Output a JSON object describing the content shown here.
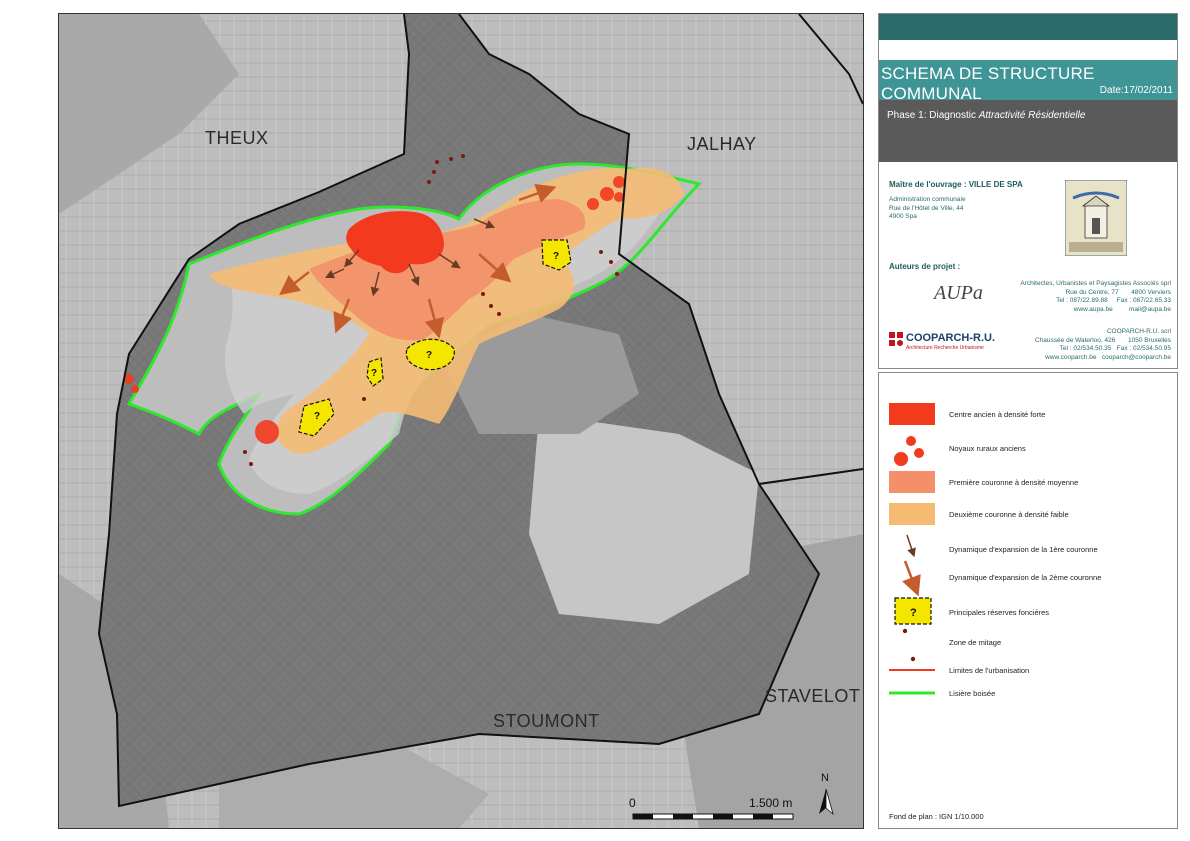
{
  "map": {
    "municipalities": {
      "theux": "THEUX",
      "jalhay": "JALHAY",
      "stoumont": "STOUMONT",
      "stavelot": "STAVELOT"
    },
    "scale": {
      "start": "0",
      "end": "1.500 m"
    },
    "north": "N",
    "colors": {
      "land_light": "#c8c8c8",
      "land_dark": "#7c7c7c",
      "forest_line": "#2ee82e",
      "core": "#f23a1e",
      "ring1": "#f3906a",
      "ring2": "#f5bb74",
      "reserve": "#f5e600"
    }
  },
  "title_block": {
    "title": "SCHEMA DE STRUCTURE COMMUNAL",
    "date": "Date:17/02/2011",
    "phase_prefix": "Phase 1: Diagnostic ",
    "phase_italic": "Attractivité Résidentielle",
    "owner_heading": "Maître de l'ouvrage : VILLE DE SPA",
    "owner_lines": [
      "Administration communale",
      "Rue de l'Hôtel de Ville, 44",
      "4900 Spa"
    ],
    "authors_heading": "Auteurs de projet :",
    "aupa_logo": "AUPa",
    "aupa_info": [
      "Architectes, Urbanistes et Paysagistes Associés sprl",
      "Rue du Centre, 77",
      "4800 Verviers",
      "Tel : 087/22.89.88",
      "Fax : 087/22.65.33",
      "www.aupa.be",
      "mail@aupa.be"
    ],
    "cooparch_logo": "COOPARCH-R.U.",
    "cooparch_tagline": "Architecture Recherche Urbanisme",
    "cooparch_info": [
      "COOPARCH-R.U. scrl",
      "Chaussée de Waterloo, 426",
      "1050 Bruxelles",
      "Tel : 02/534.50.35",
      "Fax : 02/534.50.95",
      "www.cooparch.be",
      "cooparch@cooparch.be"
    ]
  },
  "legend": {
    "items": [
      "Centre ancien à densité forte",
      "Noyaux ruraux anciens",
      "Première couronne à densité moyenne",
      "Deuxième couronne à densité faible",
      "Dynamique d'expansion de la 1ère couronne",
      "Dynamique d'expansion de la 2ème couronne",
      "Principales réserves foncières",
      "Zone de mitage",
      "Limites de l'urbanisation",
      "Lisière boisée"
    ],
    "reserve_symbol": "?",
    "basemap": "Fond de plan : IGN 1/10.000"
  }
}
